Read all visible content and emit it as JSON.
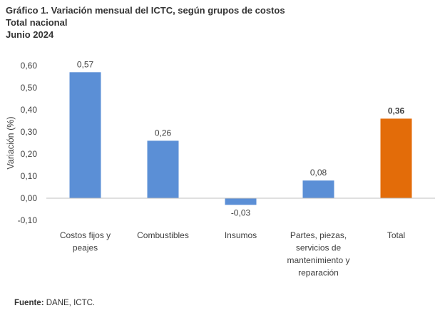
{
  "header": {
    "title": "Gráfico 1. Variación mensual del ICTC, según grupos de costos",
    "subtitle1": "Total nacional",
    "subtitle2": "Junio 2024"
  },
  "source": {
    "label": "Fuente:",
    "text": "DANE, ICTC."
  },
  "colors": {
    "bar": "#5b8fd6",
    "highlight": "#e36c09",
    "axis": "#bfbfbf",
    "text": "#404040"
  },
  "chart_data": {
    "type": "bar",
    "ylabel": "Variación (%)",
    "xlabel": "",
    "ylim": [
      -0.1,
      0.6
    ],
    "ytick_values": [
      -0.1,
      0.0,
      0.1,
      0.2,
      0.3,
      0.4,
      0.5,
      0.6
    ],
    "ytick_labels": [
      "-0,10",
      "0,00",
      "0,10",
      "0,20",
      "0,30",
      "0,40",
      "0,50",
      "0,60"
    ],
    "grid": false,
    "legend": "none",
    "categories": [
      [
        "Costos fijos y",
        "peajes"
      ],
      [
        "Combustibles"
      ],
      [
        "Insumos"
      ],
      [
        "Partes, piezas,",
        "servicios de",
        "mantenimiento y",
        "reparación"
      ],
      [
        "Total"
      ]
    ],
    "values": [
      0.57,
      0.26,
      -0.03,
      0.08,
      0.36
    ],
    "value_labels": [
      "0,57",
      "0,26",
      "-0,03",
      "0,08",
      "0,36"
    ],
    "highlight_index": 4
  }
}
